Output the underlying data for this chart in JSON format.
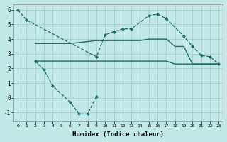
{
  "xlabel": "Humidex (Indice chaleur)",
  "xlim": [
    -0.5,
    23.5
  ],
  "ylim": [
    -1.6,
    6.4
  ],
  "yticks": [
    -1,
    0,
    1,
    2,
    3,
    4,
    5,
    6
  ],
  "xticks": [
    0,
    1,
    2,
    3,
    4,
    5,
    6,
    7,
    8,
    9,
    10,
    11,
    12,
    13,
    14,
    15,
    16,
    17,
    18,
    19,
    20,
    21,
    22,
    23
  ],
  "background_color": "#c2e8e8",
  "grid_color": "#a0c8c8",
  "line_color": "#1a6b6b",
  "curve1_x": [
    0,
    1,
    9,
    10,
    11,
    12,
    13,
    15,
    16,
    17,
    19,
    20,
    21,
    22,
    23
  ],
  "curve1_y": [
    6.0,
    5.3,
    2.8,
    4.3,
    4.5,
    4.7,
    4.7,
    5.6,
    5.7,
    5.4,
    4.2,
    3.5,
    2.9,
    2.8,
    2.3
  ],
  "curve2_x": [
    2,
    3,
    4,
    5,
    6,
    9,
    10,
    11,
    12,
    13,
    14,
    15,
    16,
    17,
    18,
    19,
    20,
    21,
    22,
    23
  ],
  "curve2_y": [
    3.7,
    3.7,
    3.7,
    3.7,
    3.7,
    3.9,
    3.9,
    3.9,
    3.9,
    3.9,
    3.9,
    4.0,
    4.0,
    4.0,
    3.5,
    3.5,
    2.3,
    2.3,
    2.3,
    2.3
  ],
  "curve3_x": [
    2,
    3,
    4,
    5,
    6,
    7,
    8,
    9,
    10,
    11,
    12,
    13,
    14,
    15,
    16,
    17,
    18,
    19,
    20,
    21,
    22,
    23
  ],
  "curve3_y": [
    2.5,
    2.5,
    2.5,
    2.5,
    2.5,
    2.5,
    2.5,
    2.5,
    2.5,
    2.5,
    2.5,
    2.5,
    2.5,
    2.5,
    2.5,
    2.5,
    2.3,
    2.3,
    2.3,
    2.3,
    2.3,
    2.3
  ],
  "curve4_x": [
    2,
    3,
    4,
    6,
    7,
    8,
    9
  ],
  "curve4_y": [
    2.5,
    1.9,
    0.8,
    -0.3,
    -1.1,
    -1.1,
    0.1
  ]
}
